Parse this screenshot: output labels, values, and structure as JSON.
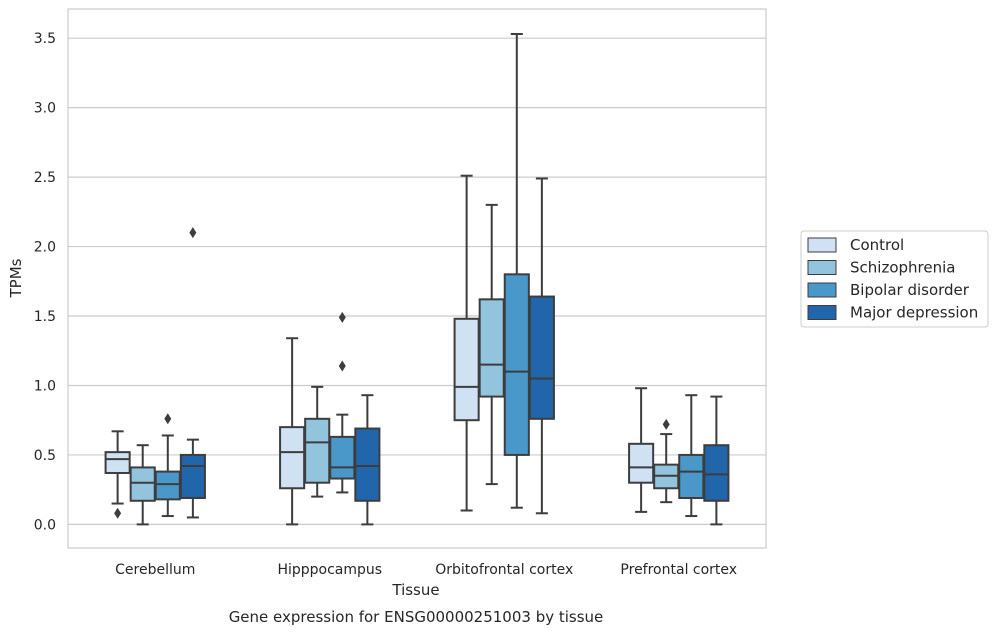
{
  "chart_data": {
    "type": "boxplot",
    "caption": "Gene expression for ENSG00000251003 by tissue",
    "xlabel": "Tissue",
    "ylabel": "TPMs",
    "ylim": [
      -0.17,
      3.71
    ],
    "yticks": [
      "0.0",
      "0.5",
      "1.0",
      "1.5",
      "2.0",
      "2.5",
      "3.0",
      "3.5"
    ],
    "grid": "horizontal",
    "legend_position": "right",
    "categories": [
      "Cerebellum",
      "Hipppocampus",
      "Orbitofrontal cortex",
      "Prefrontal cortex"
    ],
    "series": [
      {
        "name": "Control",
        "color": "#cfe1f2",
        "boxes": [
          {
            "low": 0.15,
            "q1": 0.37,
            "median": 0.47,
            "q3": 0.52,
            "high": 0.67,
            "outliers": [
              0.08
            ]
          },
          {
            "low": 0.0,
            "q1": 0.26,
            "median": 0.52,
            "q3": 0.7,
            "high": 1.34,
            "outliers": []
          },
          {
            "low": 0.1,
            "q1": 0.75,
            "median": 0.99,
            "q3": 1.48,
            "high": 2.51,
            "outliers": []
          },
          {
            "low": 0.09,
            "q1": 0.3,
            "median": 0.41,
            "q3": 0.58,
            "high": 0.98,
            "outliers": []
          }
        ]
      },
      {
        "name": "Schizophrenia",
        "color": "#93c4de",
        "boxes": [
          {
            "low": 0.0,
            "q1": 0.17,
            "median": 0.3,
            "q3": 0.41,
            "high": 0.57,
            "outliers": []
          },
          {
            "low": 0.2,
            "q1": 0.3,
            "median": 0.59,
            "q3": 0.76,
            "high": 0.99,
            "outliers": []
          },
          {
            "low": 0.29,
            "q1": 0.92,
            "median": 1.15,
            "q3": 1.62,
            "high": 2.3,
            "outliers": []
          },
          {
            "low": 0.16,
            "q1": 0.26,
            "median": 0.35,
            "q3": 0.43,
            "high": 0.65,
            "outliers": [
              0.72
            ]
          }
        ]
      },
      {
        "name": "Bipolar disorder",
        "color": "#4a98c9",
        "boxes": [
          {
            "low": 0.06,
            "q1": 0.18,
            "median": 0.29,
            "q3": 0.38,
            "high": 0.64,
            "outliers": [
              0.76
            ]
          },
          {
            "low": 0.23,
            "q1": 0.33,
            "median": 0.41,
            "q3": 0.63,
            "high": 0.79,
            "outliers": [
              1.14,
              1.49
            ]
          },
          {
            "low": 0.12,
            "q1": 0.5,
            "median": 1.1,
            "q3": 1.8,
            "high": 3.53,
            "outliers": []
          },
          {
            "low": 0.06,
            "q1": 0.19,
            "median": 0.38,
            "q3": 0.5,
            "high": 0.93,
            "outliers": []
          }
        ]
      },
      {
        "name": "Major depression",
        "color": "#2165ab",
        "boxes": [
          {
            "low": 0.05,
            "q1": 0.19,
            "median": 0.42,
            "q3": 0.5,
            "high": 0.61,
            "outliers": [
              2.1
            ]
          },
          {
            "low": 0.0,
            "q1": 0.17,
            "median": 0.42,
            "q3": 0.69,
            "high": 0.93,
            "outliers": []
          },
          {
            "low": 0.08,
            "q1": 0.76,
            "median": 1.05,
            "q3": 1.64,
            "high": 2.49,
            "outliers": []
          },
          {
            "low": 0.0,
            "q1": 0.17,
            "median": 0.36,
            "q3": 0.57,
            "high": 0.92,
            "outliers": []
          }
        ]
      }
    ]
  }
}
